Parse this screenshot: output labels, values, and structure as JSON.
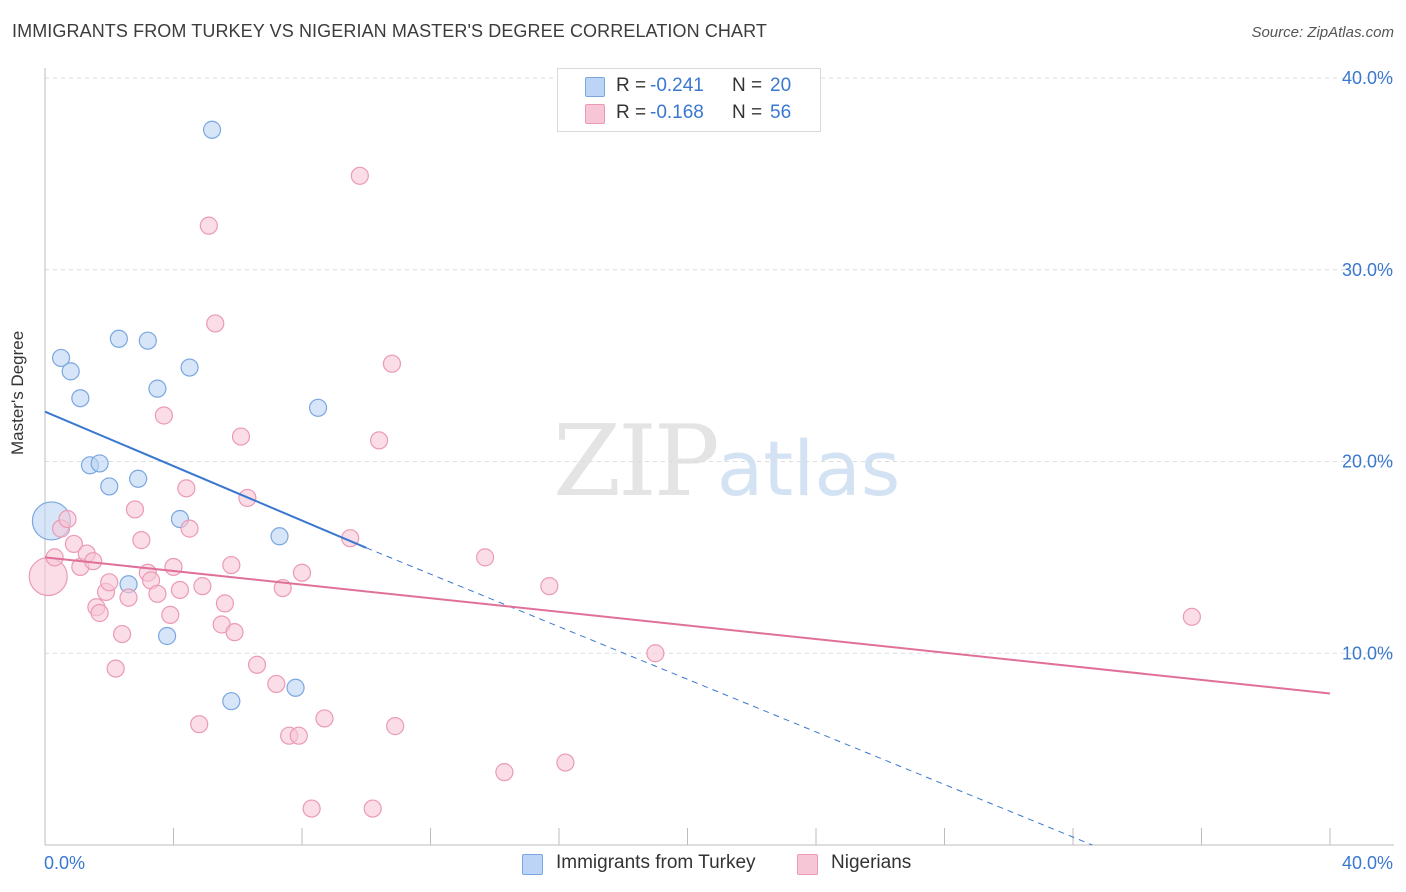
{
  "header": {
    "title": "IMMIGRANTS FROM TURKEY VS NIGERIAN MASTER'S DEGREE CORRELATION CHART",
    "source": "Source: ZipAtlas.com"
  },
  "watermark": {
    "zip": "ZIP",
    "atlas": "atlas"
  },
  "legend_top": {
    "rows": [
      {
        "r_label": "R =",
        "r_value": "-0.241",
        "n_label": "N =",
        "n_value": "20"
      },
      {
        "r_label": "R =",
        "r_value": "-0.168",
        "n_label": "N =",
        "n_value": "56"
      }
    ]
  },
  "legend_bottom": {
    "items": [
      {
        "label": "Immigrants from Turkey"
      },
      {
        "label": "Nigerians"
      }
    ]
  },
  "colors": {
    "turkey_fill": "#bcd4f5",
    "turkey_stroke": "#7aa7e0",
    "turkey_line": "#3a78d0",
    "nigerian_fill": "#f7c6d6",
    "nigerian_stroke": "#eb9ab5",
    "nigerian_line": "#e0709a",
    "tick_label": "#3a78d0",
    "grid": "#dcdcdc"
  },
  "chart_data": {
    "type": "scatter",
    "title": "IMMIGRANTS FROM TURKEY VS NIGERIAN MASTER'S DEGREE CORRELATION CHART",
    "xlabel": "",
    "ylabel": "Master's Degree",
    "xlim": [
      0,
      40
    ],
    "ylim": [
      0,
      40
    ],
    "x_tick_labels": [
      "0.0%",
      "40.0%"
    ],
    "y_ticks": [
      10,
      20,
      30,
      40
    ],
    "y_tick_labels": [
      "10.0%",
      "20.0%",
      "30.0%",
      "40.0%"
    ],
    "grid": true,
    "legend_position": "top-center",
    "series": [
      {
        "name": "Immigrants from Turkey",
        "r": -0.241,
        "n": 20,
        "points": [
          {
            "x": 0.2,
            "y": 16.9,
            "big": true
          },
          {
            "x": 0.5,
            "y": 25.4
          },
          {
            "x": 0.8,
            "y": 24.7
          },
          {
            "x": 1.1,
            "y": 23.3
          },
          {
            "x": 1.4,
            "y": 19.8
          },
          {
            "x": 1.7,
            "y": 19.9
          },
          {
            "x": 2.0,
            "y": 18.7
          },
          {
            "x": 2.3,
            "y": 26.4
          },
          {
            "x": 2.6,
            "y": 13.6
          },
          {
            "x": 2.9,
            "y": 19.1
          },
          {
            "x": 3.2,
            "y": 26.3
          },
          {
            "x": 3.5,
            "y": 23.8
          },
          {
            "x": 3.8,
            "y": 10.9
          },
          {
            "x": 4.2,
            "y": 17.0
          },
          {
            "x": 4.5,
            "y": 24.9
          },
          {
            "x": 5.2,
            "y": 37.3
          },
          {
            "x": 5.8,
            "y": 7.5
          },
          {
            "x": 7.3,
            "y": 16.1
          },
          {
            "x": 7.8,
            "y": 8.2
          },
          {
            "x": 8.5,
            "y": 22.8
          }
        ],
        "trend": {
          "x": [
            0,
            10
          ],
          "y": [
            22.6,
            15.5
          ],
          "dashed_extension": {
            "x": [
              10,
              32.6
            ],
            "y": [
              15.5,
              0
            ]
          }
        }
      },
      {
        "name": "Nigerians",
        "r": -0.168,
        "n": 56,
        "points": [
          {
            "x": 0.1,
            "y": 14.0,
            "big": true
          },
          {
            "x": 0.3,
            "y": 15.0
          },
          {
            "x": 0.5,
            "y": 16.5
          },
          {
            "x": 0.7,
            "y": 17.0
          },
          {
            "x": 0.9,
            "y": 15.7
          },
          {
            "x": 1.1,
            "y": 14.5
          },
          {
            "x": 1.3,
            "y": 15.2
          },
          {
            "x": 1.5,
            "y": 14.8
          },
          {
            "x": 1.6,
            "y": 12.4
          },
          {
            "x": 1.7,
            "y": 12.1
          },
          {
            "x": 1.9,
            "y": 13.2
          },
          {
            "x": 2.0,
            "y": 13.7
          },
          {
            "x": 2.2,
            "y": 9.2
          },
          {
            "x": 2.4,
            "y": 11.0
          },
          {
            "x": 2.6,
            "y": 12.9
          },
          {
            "x": 2.8,
            "y": 17.5
          },
          {
            "x": 3.0,
            "y": 15.9
          },
          {
            "x": 3.2,
            "y": 14.2
          },
          {
            "x": 3.3,
            "y": 13.8
          },
          {
            "x": 3.5,
            "y": 13.1
          },
          {
            "x": 3.7,
            "y": 22.4
          },
          {
            "x": 3.9,
            "y": 12.0
          },
          {
            "x": 4.0,
            "y": 14.5
          },
          {
            "x": 4.2,
            "y": 13.3
          },
          {
            "x": 4.4,
            "y": 18.6
          },
          {
            "x": 4.5,
            "y": 16.5
          },
          {
            "x": 4.8,
            "y": 6.3
          },
          {
            "x": 4.9,
            "y": 13.5
          },
          {
            "x": 5.1,
            "y": 32.3
          },
          {
            "x": 5.3,
            "y": 27.2
          },
          {
            "x": 5.5,
            "y": 11.5
          },
          {
            "x": 5.6,
            "y": 12.6
          },
          {
            "x": 5.8,
            "y": 14.6
          },
          {
            "x": 5.9,
            "y": 11.1
          },
          {
            "x": 6.1,
            "y": 21.3
          },
          {
            "x": 6.3,
            "y": 18.1
          },
          {
            "x": 6.6,
            "y": 9.4
          },
          {
            "x": 7.4,
            "y": 13.4
          },
          {
            "x": 7.6,
            "y": 5.7
          },
          {
            "x": 7.9,
            "y": 5.7
          },
          {
            "x": 8.0,
            "y": 14.2
          },
          {
            "x": 8.3,
            "y": 1.9
          },
          {
            "x": 8.7,
            "y": 6.6
          },
          {
            "x": 9.5,
            "y": 16.0
          },
          {
            "x": 9.8,
            "y": 34.9
          },
          {
            "x": 10.2,
            "y": 1.9
          },
          {
            "x": 10.4,
            "y": 21.1
          },
          {
            "x": 10.8,
            "y": 25.1
          },
          {
            "x": 10.9,
            "y": 6.2
          },
          {
            "x": 13.7,
            "y": 15.0
          },
          {
            "x": 14.3,
            "y": 3.8
          },
          {
            "x": 15.7,
            "y": 13.5
          },
          {
            "x": 16.2,
            "y": 4.3
          },
          {
            "x": 19.0,
            "y": 10.0
          },
          {
            "x": 35.7,
            "y": 11.9
          },
          {
            "x": 7.2,
            "y": 8.4
          }
        ],
        "trend": {
          "x": [
            0,
            40
          ],
          "y": [
            15.0,
            7.9
          ]
        }
      }
    ]
  }
}
